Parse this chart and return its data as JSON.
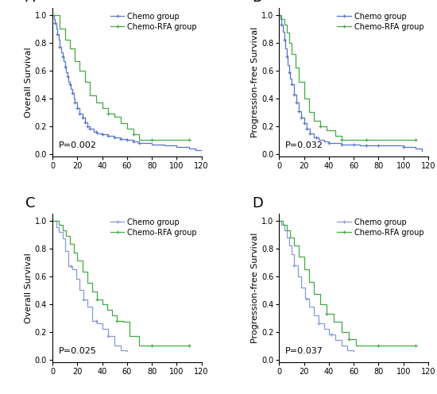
{
  "panels": [
    {
      "label": "A",
      "ylabel": "Overall Survival",
      "pvalue": "P=0.002",
      "chemo": {
        "times": [
          0,
          1,
          2,
          3,
          4,
          5,
          6,
          7,
          8,
          9,
          10,
          11,
          12,
          13,
          14,
          15,
          16,
          17,
          18,
          20,
          22,
          24,
          26,
          28,
          30,
          33,
          36,
          40,
          45,
          50,
          55,
          60,
          65,
          70,
          80,
          90,
          100,
          110,
          115,
          120
        ],
        "survival": [
          1.0,
          0.97,
          0.94,
          0.9,
          0.86,
          0.82,
          0.77,
          0.73,
          0.7,
          0.67,
          0.63,
          0.59,
          0.56,
          0.52,
          0.5,
          0.47,
          0.44,
          0.4,
          0.37,
          0.33,
          0.29,
          0.26,
          0.23,
          0.2,
          0.18,
          0.16,
          0.15,
          0.14,
          0.13,
          0.12,
          0.11,
          0.1,
          0.09,
          0.08,
          0.07,
          0.06,
          0.05,
          0.04,
          0.03,
          0.01
        ],
        "censor_times": [
          2,
          4,
          6,
          8,
          10,
          12,
          14,
          16,
          18,
          20,
          22,
          24,
          26,
          28,
          30,
          35,
          40,
          45,
          50,
          55,
          60,
          65,
          70
        ]
      },
      "rfa": {
        "times": [
          0,
          3,
          6,
          10,
          14,
          18,
          22,
          26,
          30,
          35,
          40,
          45,
          50,
          55,
          60,
          65,
          70,
          80,
          90,
          110
        ],
        "survival": [
          1.0,
          1.0,
          0.9,
          0.82,
          0.76,
          0.67,
          0.6,
          0.52,
          0.42,
          0.37,
          0.33,
          0.29,
          0.27,
          0.22,
          0.18,
          0.14,
          0.1,
          0.1,
          0.1,
          0.1
        ],
        "censor_times": [
          45,
          65,
          80,
          110
        ]
      }
    },
    {
      "label": "B",
      "ylabel": "Progression-free Survival",
      "pvalue": "P=0.032",
      "chemo": {
        "times": [
          0,
          1,
          2,
          3,
          4,
          5,
          6,
          7,
          8,
          9,
          10,
          12,
          14,
          16,
          18,
          20,
          22,
          25,
          28,
          32,
          36,
          40,
          45,
          50,
          55,
          60,
          65,
          70,
          80,
          90,
          100,
          110,
          115
        ],
        "survival": [
          1.0,
          0.97,
          0.93,
          0.88,
          0.82,
          0.76,
          0.7,
          0.64,
          0.59,
          0.54,
          0.5,
          0.43,
          0.37,
          0.31,
          0.26,
          0.22,
          0.18,
          0.15,
          0.12,
          0.1,
          0.09,
          0.08,
          0.08,
          0.07,
          0.07,
          0.07,
          0.06,
          0.06,
          0.06,
          0.06,
          0.05,
          0.04,
          0.02
        ],
        "censor_times": [
          2,
          4,
          6,
          8,
          10,
          12,
          14,
          16,
          18,
          20,
          22,
          25,
          30,
          40,
          50,
          60,
          70,
          80,
          100
        ]
      },
      "rfa": {
        "times": [
          0,
          2,
          4,
          6,
          8,
          10,
          13,
          16,
          20,
          24,
          28,
          33,
          38,
          45,
          50,
          60,
          70,
          110
        ],
        "survival": [
          1.0,
          0.97,
          0.93,
          0.87,
          0.8,
          0.72,
          0.62,
          0.52,
          0.4,
          0.3,
          0.24,
          0.2,
          0.17,
          0.13,
          0.1,
          0.1,
          0.1,
          0.1
        ],
        "censor_times": [
          33,
          50,
          70,
          110
        ]
      }
    },
    {
      "label": "C",
      "ylabel": "Overall Survival",
      "pvalue": "P=0.025",
      "chemo": {
        "times": [
          0,
          3,
          5,
          8,
          10,
          13,
          16,
          19,
          22,
          25,
          28,
          32,
          36,
          40,
          45,
          50,
          55,
          60
        ],
        "survival": [
          1.0,
          0.95,
          0.92,
          0.87,
          0.78,
          0.67,
          0.65,
          0.58,
          0.5,
          0.43,
          0.38,
          0.28,
          0.26,
          0.22,
          0.17,
          0.1,
          0.07,
          0.06
        ],
        "censor_times": [
          15,
          25,
          35,
          45
        ]
      },
      "rfa": {
        "times": [
          0,
          2,
          5,
          8,
          11,
          14,
          17,
          20,
          24,
          28,
          32,
          36,
          40,
          44,
          48,
          52,
          57,
          62,
          70,
          80,
          100,
          110
        ],
        "survival": [
          1.0,
          1.0,
          0.97,
          0.93,
          0.89,
          0.83,
          0.77,
          0.71,
          0.63,
          0.55,
          0.49,
          0.43,
          0.4,
          0.36,
          0.32,
          0.28,
          0.27,
          0.17,
          0.1,
          0.1,
          0.1,
          0.1
        ],
        "censor_times": [
          36,
          52,
          80,
          110
        ]
      }
    },
    {
      "label": "D",
      "ylabel": "Progression-free Survival",
      "pvalue": "P=0.037",
      "chemo": {
        "times": [
          0,
          2,
          4,
          6,
          8,
          10,
          12,
          15,
          18,
          21,
          24,
          28,
          32,
          36,
          40,
          45,
          50,
          55,
          60
        ],
        "survival": [
          1.0,
          0.97,
          0.93,
          0.88,
          0.82,
          0.76,
          0.68,
          0.6,
          0.52,
          0.44,
          0.38,
          0.32,
          0.26,
          0.22,
          0.18,
          0.14,
          0.1,
          0.07,
          0.06
        ],
        "censor_times": [
          12,
          22,
          32,
          42
        ]
      },
      "rfa": {
        "times": [
          0,
          3,
          6,
          9,
          12,
          16,
          20,
          24,
          28,
          33,
          38,
          44,
          50,
          56,
          62,
          70,
          80,
          100,
          110
        ],
        "survival": [
          1.0,
          0.97,
          0.93,
          0.88,
          0.82,
          0.74,
          0.65,
          0.56,
          0.47,
          0.4,
          0.33,
          0.27,
          0.2,
          0.15,
          0.1,
          0.1,
          0.1,
          0.1,
          0.1
        ],
        "censor_times": [
          38,
          56,
          80,
          110
        ]
      }
    }
  ],
  "xlim": [
    0,
    120
  ],
  "ylim": [
    -0.02,
    1.05
  ],
  "xticks": [
    0,
    20,
    40,
    60,
    80,
    100,
    120
  ],
  "yticks": [
    0.0,
    0.2,
    0.4,
    0.6,
    0.8,
    1.0
  ],
  "legend_labels": [
    "Chemo group",
    "Chemo-RFA group"
  ],
  "chemo_color_AB": "#5577CC",
  "chemo_color_CD": "#8899DD",
  "rfa_color": "#44AA44",
  "bg_color": "#FFFFFF",
  "tick_fontsize": 7,
  "label_fontsize": 8,
  "panel_label_fontsize": 13,
  "legend_fontsize": 7,
  "pvalue_fontsize": 8
}
